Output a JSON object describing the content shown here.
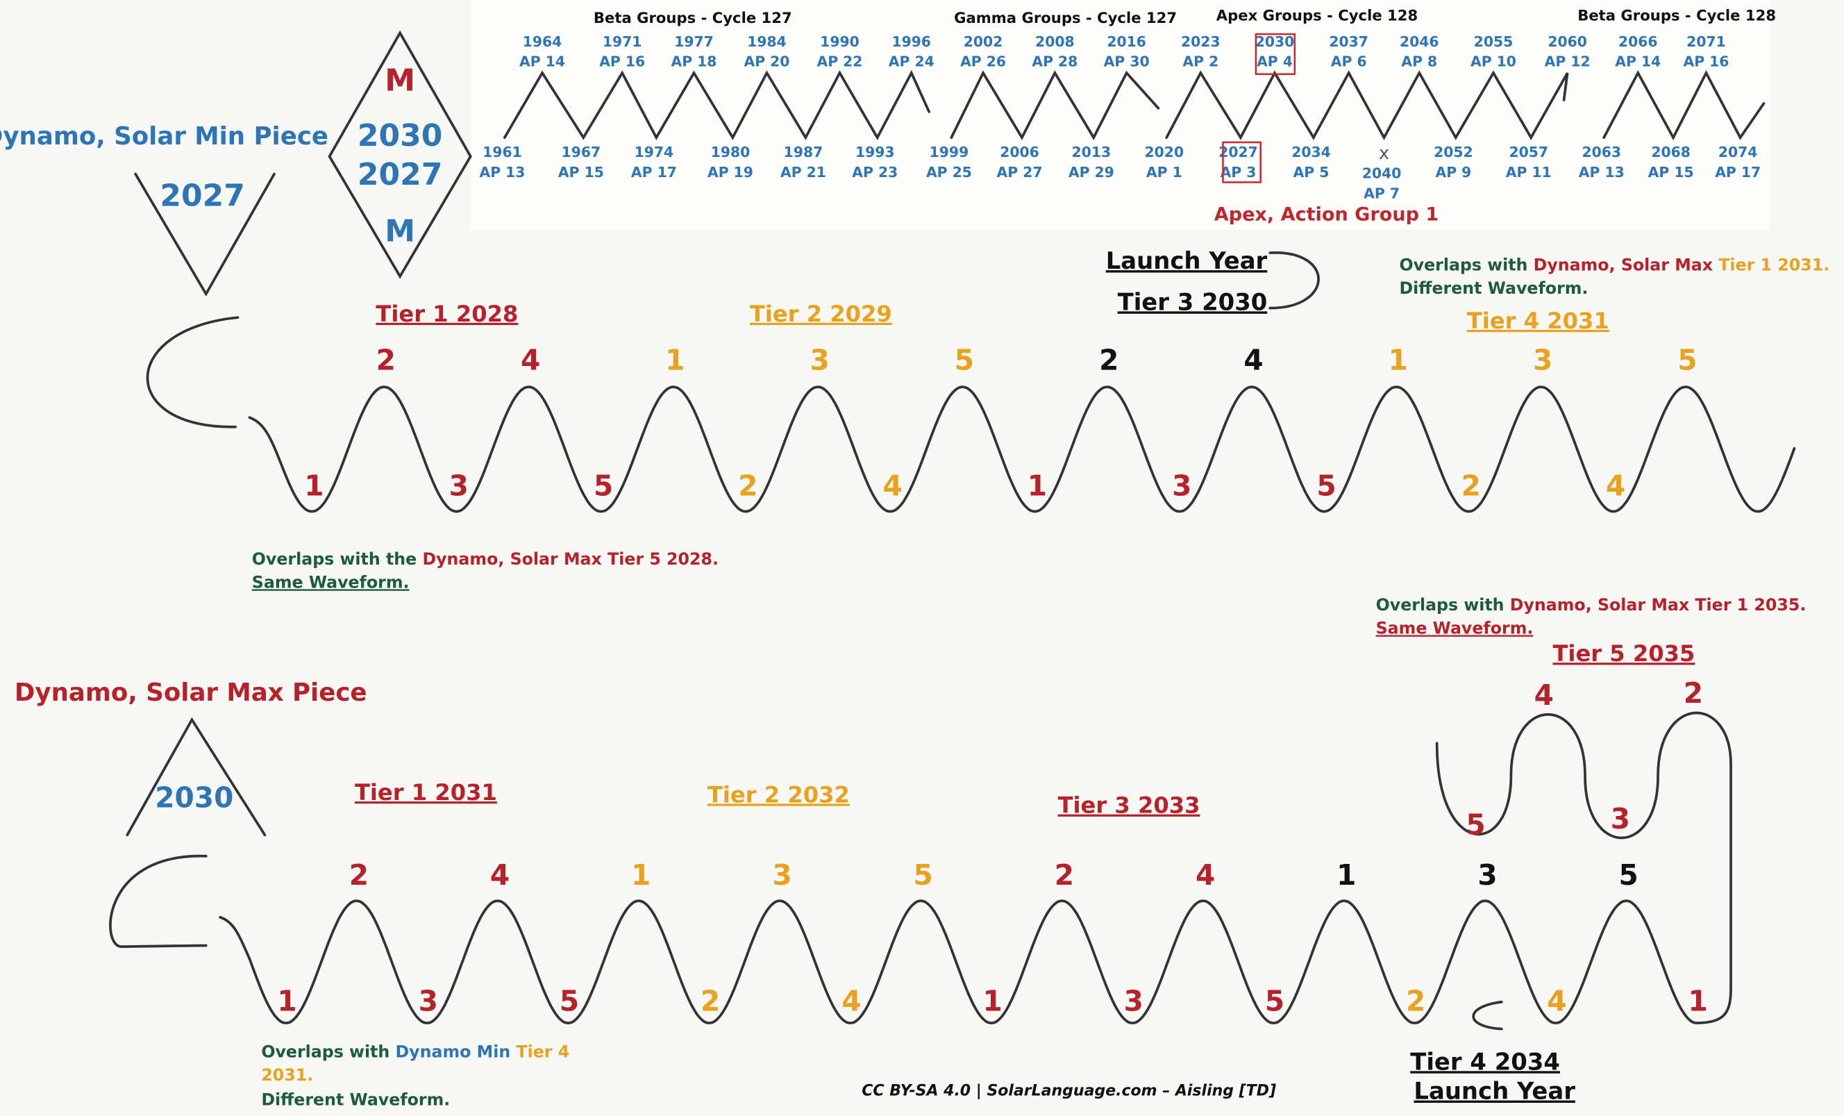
{
  "min_piece": {
    "title": "Dynamo, Solar Min Piece",
    "year": "2027"
  },
  "diamond": {
    "top": "M",
    "year1": "2030",
    "year2": "2027",
    "bottom": "M"
  },
  "group_headers": [
    "Beta Groups - Cycle 127",
    "Gamma Groups - Cycle 127",
    "Apex Groups - Cycle 128",
    "Beta Groups - Cycle 128"
  ],
  "zigzag": {
    "peaks": [
      {
        "year": "1964",
        "ap": "AP 14"
      },
      {
        "year": "1971",
        "ap": "AP 16"
      },
      {
        "year": "1977",
        "ap": "AP 18"
      },
      {
        "year": "1984",
        "ap": "AP 20"
      },
      {
        "year": "1990",
        "ap": "AP 22"
      },
      {
        "year": "1996",
        "ap": "AP 24"
      },
      {
        "year": "2002",
        "ap": "AP 26"
      },
      {
        "year": "2008",
        "ap": "AP 28"
      },
      {
        "year": "2016",
        "ap": "AP 30"
      },
      {
        "year": "2023",
        "ap": "AP 2"
      },
      {
        "year": "2030",
        "ap": "AP 4"
      },
      {
        "year": "2037",
        "ap": "AP 6"
      },
      {
        "year": "2046",
        "ap": "AP 8"
      },
      {
        "year": "2055",
        "ap": "AP 10"
      },
      {
        "year": "2060",
        "ap": "AP 12"
      },
      {
        "year": "2066",
        "ap": "AP 14"
      },
      {
        "year": "2071",
        "ap": "AP 16"
      }
    ],
    "troughs": [
      {
        "year": "1961",
        "ap": "AP 13"
      },
      {
        "year": "1967",
        "ap": "AP 15"
      },
      {
        "year": "1974",
        "ap": "AP 17"
      },
      {
        "year": "1980",
        "ap": "AP 19"
      },
      {
        "year": "1987",
        "ap": "AP 21"
      },
      {
        "year": "1993",
        "ap": "AP 23"
      },
      {
        "year": "1999",
        "ap": "AP 25"
      },
      {
        "year": "2006",
        "ap": "AP 27"
      },
      {
        "year": "2013",
        "ap": "AP 29"
      },
      {
        "year": "2020",
        "ap": "AP 1"
      },
      {
        "year": "2027",
        "ap": "AP 3"
      },
      {
        "year": "2034",
        "ap": "AP 5"
      },
      {
        "year": "2040",
        "ap": "AP 7"
      },
      {
        "year": "2052",
        "ap": "AP 9"
      },
      {
        "year": "2057",
        "ap": "AP 11"
      },
      {
        "year": "2063",
        "ap": "AP 13"
      },
      {
        "year": "2068",
        "ap": "AP 15"
      },
      {
        "year": "2074",
        "ap": "AP 17"
      }
    ],
    "x_mark": "x",
    "apex_label": "Apex, Action Group 1"
  },
  "launch_top": {
    "title": "Launch Year",
    "tier": "Tier 3 2030"
  },
  "note_top_right": {
    "a": "Overlaps with",
    "b": "Dynamo, Solar Max",
    "c": "Tier 1 2031.",
    "d": "Different Waveform."
  },
  "top_tiers": [
    "Tier 1 2028",
    "Tier 2 2029",
    "Tier 4 2031"
  ],
  "top_wave": {
    "peaks": [
      {
        "label": 2,
        "color": "#b7222a"
      },
      {
        "label": 4,
        "color": "#b7222a"
      },
      {
        "label": 1,
        "color": "#e8a21e"
      },
      {
        "label": 3,
        "color": "#e8a21e"
      },
      {
        "label": 5,
        "color": "#e8a21e"
      },
      {
        "label": 2,
        "color": "#111111"
      },
      {
        "label": 4,
        "color": "#111111"
      },
      {
        "label": 1,
        "color": "#e8a21e"
      },
      {
        "label": 3,
        "color": "#e8a21e"
      },
      {
        "label": 5,
        "color": "#e8a21e"
      }
    ],
    "troughs": [
      {
        "label": 1,
        "color": "#b7222a"
      },
      {
        "label": 3,
        "color": "#b7222a"
      },
      {
        "label": 5,
        "color": "#b7222a"
      },
      {
        "label": 2,
        "color": "#e8a21e"
      },
      {
        "label": 4,
        "color": "#e8a21e"
      },
      {
        "label": 1,
        "color": "#b7222a"
      },
      {
        "label": 3,
        "color": "#b7222a"
      },
      {
        "label": 5,
        "color": "#b7222a"
      },
      {
        "label": 2,
        "color": "#e8a21e"
      },
      {
        "label": 4,
        "color": "#e8a21e"
      }
    ]
  },
  "note_left": {
    "a": "Overlaps with the",
    "b": "Dynamo, Solar Max Tier 5 2028.",
    "c": "Same Waveform."
  },
  "note_mid_right": {
    "a": "Overlaps with",
    "b": "Dynamo, Solar Max Tier 1 2035.",
    "c": "Same Waveform."
  },
  "max_piece": {
    "title": "Dynamo, Solar Max Piece",
    "year": "2030"
  },
  "bottom_tiers": [
    "Tier 1 2031",
    "Tier 2 2032",
    "Tier 3 2033",
    "Tier 5 2035"
  ],
  "launch_bottom": {
    "tier": "Tier 4 2034",
    "title": "Launch Year"
  },
  "bottom_wave": {
    "peaks": [
      {
        "label": 2,
        "color": "#b7222a"
      },
      {
        "label": 4,
        "color": "#b7222a"
      },
      {
        "label": 1,
        "color": "#e8a21e"
      },
      {
        "label": 3,
        "color": "#e8a21e"
      },
      {
        "label": 5,
        "color": "#e8a21e"
      },
      {
        "label": 2,
        "color": "#b7222a"
      },
      {
        "label": 4,
        "color": "#b7222a"
      },
      {
        "label": 1,
        "color": "#111111"
      },
      {
        "label": 3,
        "color": "#111111"
      },
      {
        "label": 5,
        "color": "#111111"
      }
    ],
    "troughs": [
      {
        "label": 1,
        "color": "#b7222a"
      },
      {
        "label": 3,
        "color": "#b7222a"
      },
      {
        "label": 5,
        "color": "#b7222a"
      },
      {
        "label": 2,
        "color": "#e8a21e"
      },
      {
        "label": 4,
        "color": "#e8a21e"
      },
      {
        "label": 1,
        "color": "#b7222a"
      },
      {
        "label": 3,
        "color": "#b7222a"
      },
      {
        "label": 5,
        "color": "#b7222a"
      },
      {
        "label": 2,
        "color": "#e8a21e"
      },
      {
        "label": 4,
        "color": "#e8a21e"
      },
      {
        "label": 1,
        "color": "#b7222a"
      }
    ],
    "loop_peaks": [
      {
        "label": 4,
        "color": "#b7222a"
      },
      {
        "label": 2,
        "color": "#b7222a"
      }
    ],
    "loop_troughs": [
      {
        "label": 5,
        "color": "#b7222a"
      },
      {
        "label": 3,
        "color": "#b7222a"
      }
    ]
  },
  "note_bottom_left": {
    "a": "Overlaps with",
    "b": "Dynamo Min",
    "c": "Tier 4",
    "d": "2031.",
    "e": "Different Waveform."
  },
  "footer": "CC BY-SA 4.0 | SolarLanguage.com – Aisling [TD]"
}
